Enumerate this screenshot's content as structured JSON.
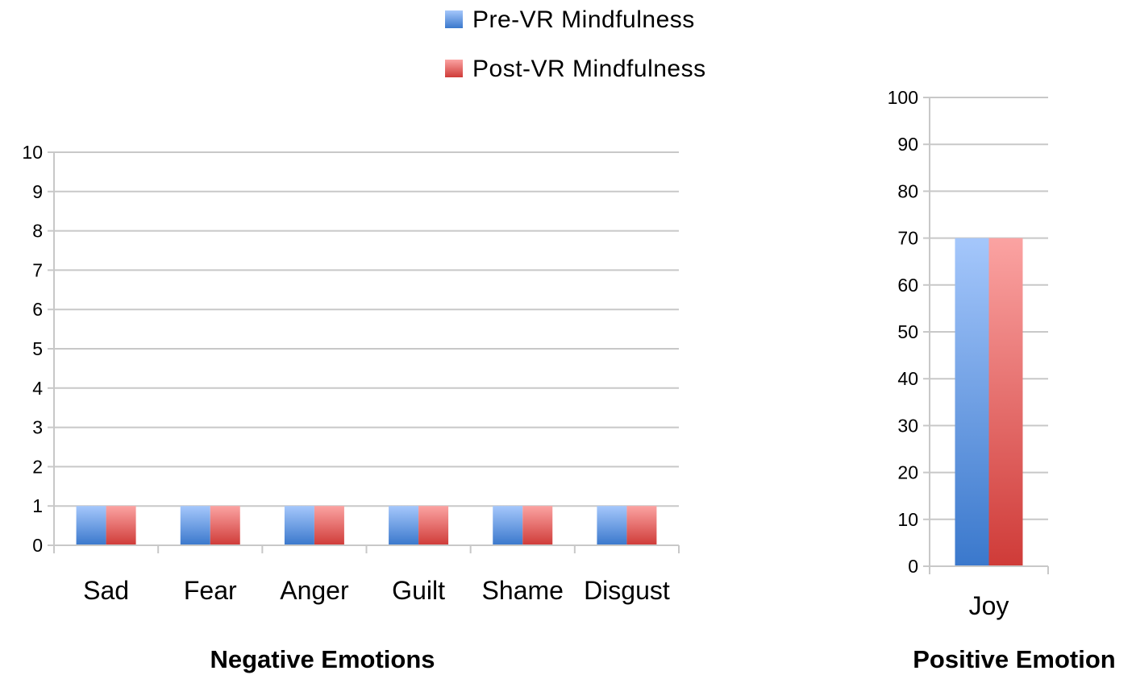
{
  "legend": [
    {
      "label": "Pre-VR Mindfulness",
      "color": "#4f81bd"
    },
    {
      "label": "Post-VR Mindfulness",
      "color": "#c0504d"
    }
  ],
  "chart_data": [
    {
      "type": "bar",
      "xlabel": "Negative Emotions",
      "ylabel": "",
      "categories": [
        "Sad",
        "Fear",
        "Anger",
        "Guilt",
        "Shame",
        "Disgust"
      ],
      "series": [
        {
          "name": "Pre-VR Mindfulness",
          "values": [
            1,
            1,
            1,
            1,
            1,
            1
          ]
        },
        {
          "name": "Post-VR Mindfulness",
          "values": [
            1,
            1,
            1,
            1,
            1,
            1
          ]
        }
      ],
      "ylim": [
        0,
        10
      ],
      "yticks": [
        0,
        1,
        2,
        3,
        4,
        5,
        6,
        7,
        8,
        9,
        10
      ],
      "grid": true,
      "legend_position": "top"
    },
    {
      "type": "bar",
      "xlabel": "Positive Emotion",
      "ylabel": "",
      "categories": [
        "Joy"
      ],
      "series": [
        {
          "name": "Pre-VR Mindfulness",
          "values": [
            70
          ]
        },
        {
          "name": "Post-VR Mindfulness",
          "values": [
            70
          ]
        }
      ],
      "ylim": [
        0,
        100
      ],
      "yticks": [
        0,
        10,
        20,
        30,
        40,
        50,
        60,
        70,
        80,
        90,
        100
      ],
      "grid": true,
      "legend_position": "top"
    }
  ]
}
